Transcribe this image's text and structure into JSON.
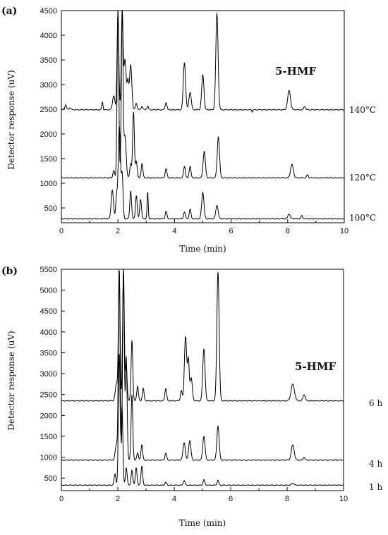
{
  "chart_data": [
    {
      "panel_label": "(a)",
      "type": "line",
      "xlabel": "Time (min)",
      "ylabel": "Detector response (uV)",
      "xlim": [
        0,
        10
      ],
      "ylim": [
        200,
        4500
      ],
      "xticks": [
        0,
        2,
        4,
        6,
        8,
        10
      ],
      "yticks": [
        500,
        1000,
        1500,
        2000,
        2500,
        3000,
        3500,
        4000,
        4500
      ],
      "annotation": "5-HMF",
      "series": [
        {
          "name": "140°C",
          "baseline": 2490,
          "peaks": [
            [
              0.15,
              2590,
              0.03
            ],
            [
              0.3,
              2530,
              0.03
            ],
            [
              1.45,
              2650,
              0.02
            ],
            [
              1.85,
              2780,
              0.04
            ],
            [
              2.0,
              4500,
              0.03
            ],
            [
              2.15,
              4500,
              0.03
            ],
            [
              2.25,
              3500,
              0.04
            ],
            [
              2.35,
              3050,
              0.03
            ],
            [
              2.45,
              3400,
              0.04
            ],
            [
              2.65,
              2620,
              0.03
            ],
            [
              2.85,
              2560,
              0.03
            ],
            [
              3.05,
              2560,
              0.03
            ],
            [
              3.7,
              2640,
              0.03
            ],
            [
              4.35,
              3450,
              0.04
            ],
            [
              4.55,
              2850,
              0.04
            ],
            [
              5.0,
              3200,
              0.04
            ],
            [
              5.5,
              4450,
              0.04
            ],
            [
              6.75,
              2450,
              0.02
            ],
            [
              8.05,
              2880,
              0.05
            ],
            [
              8.6,
              2560,
              0.03
            ]
          ]
        },
        {
          "name": "120°C",
          "baseline": 1110,
          "peaks": [
            [
              1.85,
              1260,
              0.03
            ],
            [
              2.0,
              4500,
              0.03
            ],
            [
              2.15,
              4500,
              0.03
            ],
            [
              2.25,
              1950,
              0.04
            ],
            [
              2.45,
              1400,
              0.03
            ],
            [
              2.55,
              2450,
              0.03
            ],
            [
              2.65,
              1450,
              0.03
            ],
            [
              2.85,
              1400,
              0.03
            ],
            [
              3.7,
              1300,
              0.03
            ],
            [
              4.35,
              1350,
              0.03
            ],
            [
              4.55,
              1350,
              0.03
            ],
            [
              5.05,
              1650,
              0.04
            ],
            [
              5.55,
              1950,
              0.04
            ],
            [
              8.15,
              1380,
              0.05
            ],
            [
              8.7,
              1170,
              0.03
            ]
          ]
        },
        {
          "name": "100°C",
          "baseline": 280,
          "peaks": [
            [
              1.8,
              860,
              0.04
            ],
            [
              1.95,
              720,
              0.03
            ],
            [
              2.05,
              2150,
              0.04
            ],
            [
              2.15,
              1150,
              0.03
            ],
            [
              2.45,
              850,
              0.03
            ],
            [
              2.65,
              750,
              0.03
            ],
            [
              2.8,
              680,
              0.03
            ],
            [
              3.05,
              820,
              0.02
            ],
            [
              3.7,
              430,
              0.03
            ],
            [
              4.35,
              420,
              0.03
            ],
            [
              4.55,
              480,
              0.03
            ],
            [
              5.0,
              820,
              0.04
            ],
            [
              5.5,
              560,
              0.04
            ],
            [
              8.05,
              380,
              0.04
            ],
            [
              8.5,
              340,
              0.03
            ]
          ]
        }
      ]
    },
    {
      "panel_label": "(b)",
      "type": "line",
      "xlabel": "Time (min)",
      "ylabel": "Detector response (uV)",
      "xlim": [
        0,
        10
      ],
      "ylim": [
        200,
        5500
      ],
      "xticks": [
        0,
        2,
        4,
        6,
        8,
        10
      ],
      "yticks": [
        500,
        1000,
        1500,
        2000,
        2500,
        3000,
        3500,
        4000,
        4500,
        5000,
        5500
      ],
      "annotation": "5-HMF",
      "series": [
        {
          "name": "6 h",
          "baseline": 2350,
          "peaks": [
            [
              1.95,
              2750,
              0.04
            ],
            [
              2.05,
              5500,
              0.03
            ],
            [
              2.2,
              5500,
              0.03
            ],
            [
              2.3,
              3200,
              0.03
            ],
            [
              2.5,
              3800,
              0.03
            ],
            [
              2.7,
              2700,
              0.03
            ],
            [
              2.9,
              2650,
              0.03
            ],
            [
              3.7,
              2650,
              0.03
            ],
            [
              4.25,
              2600,
              0.03
            ],
            [
              4.4,
              3900,
              0.04
            ],
            [
              4.5,
              3300,
              0.03
            ],
            [
              4.6,
              2900,
              0.04
            ],
            [
              5.05,
              3600,
              0.04
            ],
            [
              5.55,
              5450,
              0.04
            ],
            [
              8.2,
              2750,
              0.06
            ],
            [
              8.6,
              2500,
              0.04
            ]
          ]
        },
        {
          "name": "4 h",
          "baseline": 930,
          "peaks": [
            [
              1.95,
              1300,
              0.04
            ],
            [
              2.05,
              5500,
              0.03
            ],
            [
              2.2,
              5500,
              0.03
            ],
            [
              2.3,
              3400,
              0.03
            ],
            [
              2.5,
              2500,
              0.03
            ],
            [
              2.7,
              1100,
              0.03
            ],
            [
              2.85,
              1300,
              0.03
            ],
            [
              3.7,
              1100,
              0.03
            ],
            [
              4.35,
              1350,
              0.04
            ],
            [
              4.55,
              1400,
              0.04
            ],
            [
              5.05,
              1500,
              0.04
            ],
            [
              5.55,
              1750,
              0.04
            ],
            [
              8.2,
              1300,
              0.05
            ],
            [
              8.6,
              1000,
              0.03
            ]
          ]
        },
        {
          "name": "1 h",
          "baseline": 330,
          "peaks": [
            [
              1.9,
              600,
              0.03
            ],
            [
              2.05,
              3500,
              0.03
            ],
            [
              2.15,
              2200,
              0.03
            ],
            [
              2.3,
              750,
              0.03
            ],
            [
              2.5,
              680,
              0.03
            ],
            [
              2.65,
              750,
              0.03
            ],
            [
              2.85,
              780,
              0.03
            ],
            [
              3.7,
              400,
              0.03
            ],
            [
              4.35,
              440,
              0.03
            ],
            [
              5.05,
              460,
              0.03
            ],
            [
              5.55,
              450,
              0.03
            ],
            [
              8.2,
              380,
              0.04
            ]
          ]
        }
      ]
    }
  ]
}
